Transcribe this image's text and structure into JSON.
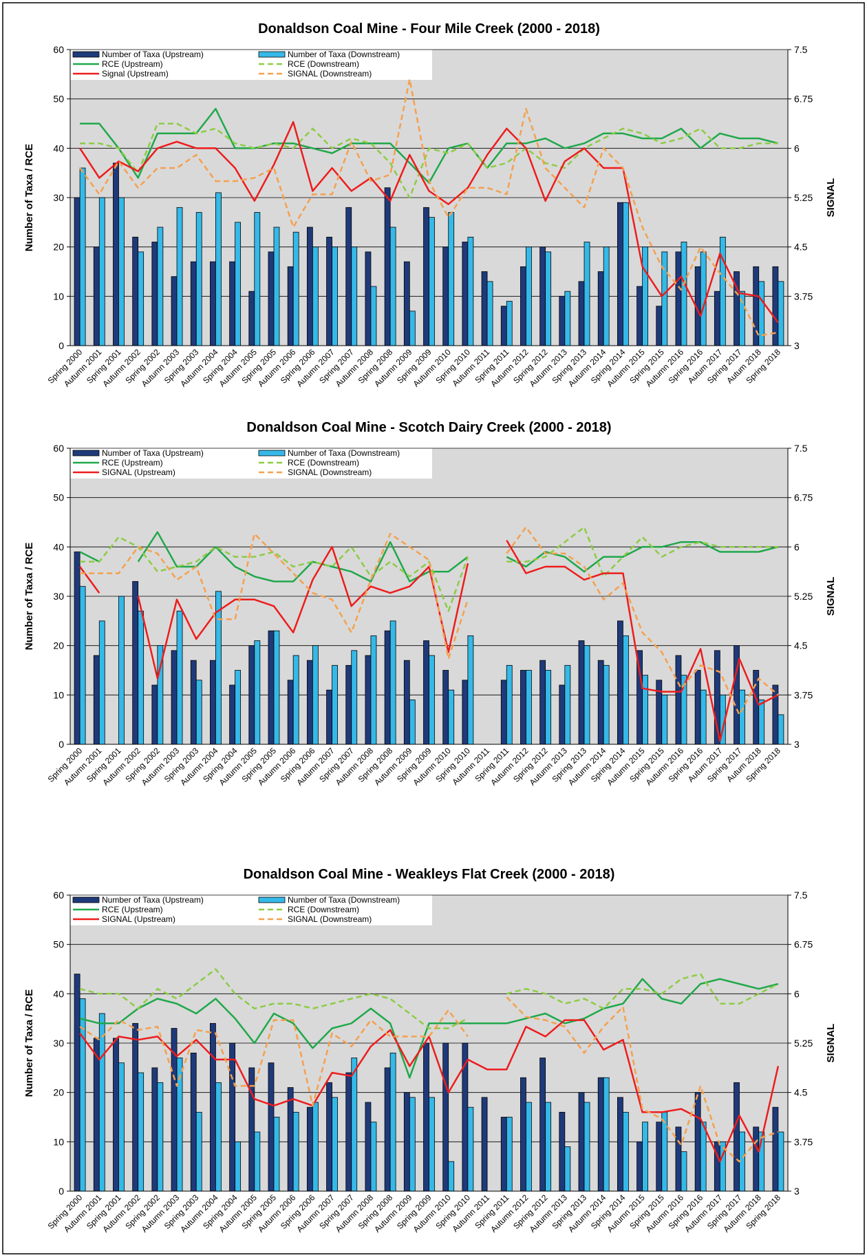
{
  "chart_data": [
    {
      "type": "combo",
      "title": "Donaldson Coal Mine - Four Mile Creek (2000 - 2018)",
      "ylabel": "Number of Taxa /  RCE",
      "y2label": "SIGNAL",
      "categories": [
        "Spring 2000",
        "Autumn 2001",
        "Spring 2001",
        "Autumn 2002",
        "Spring 2002",
        "Autumn 2003",
        "Spring 2003",
        "Autumn 2004",
        "Spring 2004",
        "Autumn 2005",
        "Spring 2005",
        "Autumn 2006",
        "Spring 2006",
        "Autumn 2007",
        "Spring 2007",
        "Autumn 2008",
        "Spring 2008",
        "Autumn 2009",
        "Spring 2009",
        "Autumn 2010",
        "Spring 2010",
        "Autumn 2011",
        "Spring 2011",
        "Autumn 2012",
        "Spring 2012",
        "Autumn 2013",
        "Spring 2013",
        "Autumn 2014",
        "Spring 2014",
        "Autumn 2015",
        "Spring 2015",
        "Autumn 2016",
        "Spring 2016",
        "Autum 2017",
        "Spring 2017",
        "Autum 2018",
        "Spring 2018"
      ],
      "ylim": [
        0,
        60
      ],
      "yticks": [
        0,
        10,
        20,
        30,
        40,
        50,
        60
      ],
      "y2lim": [
        3,
        7.5
      ],
      "y2ticks": [
        3,
        3.75,
        4.5,
        5.25,
        6,
        6.75,
        7.5
      ],
      "grid": true,
      "series": [
        {
          "name": "Number of Taxa (Upstream)",
          "type": "bar",
          "color": "#1f3a7a",
          "values": [
            30,
            20,
            37,
            22,
            21,
            14,
            17,
            17,
            17,
            11,
            19,
            16,
            24,
            22,
            28,
            19,
            32,
            17,
            28,
            20,
            21,
            15,
            8,
            16,
            20,
            10,
            13,
            15,
            29,
            12,
            8,
            19,
            16,
            11,
            15,
            16,
            16
          ]
        },
        {
          "name": "Number of Taxa (Downstream)",
          "type": "bar",
          "color": "#35b9e8",
          "values": [
            36,
            30,
            30,
            19,
            24,
            28,
            27,
            31,
            25,
            27,
            24,
            23,
            20,
            20,
            20,
            12,
            24,
            7,
            26,
            27,
            22,
            13,
            9,
            20,
            19,
            11,
            21,
            20,
            29,
            20,
            19,
            21,
            19,
            22,
            11,
            13,
            13
          ]
        },
        {
          "name": "RCE (Upstream)",
          "type": "line",
          "color": "#1fa84a",
          "values": [
            45,
            45,
            40,
            34,
            43,
            43,
            43,
            48,
            40,
            40,
            41,
            41,
            40,
            39,
            41,
            41,
            41,
            37,
            33,
            40,
            41,
            36,
            41,
            41,
            42,
            40,
            41,
            43,
            43,
            42,
            42,
            44,
            40,
            43,
            42,
            42,
            41
          ]
        },
        {
          "name": "RCE (Downstream)",
          "type": "line",
          "dashed": true,
          "color": "#8ccc44",
          "values": [
            41,
            41,
            40,
            35,
            45,
            45,
            43,
            44,
            41,
            40,
            41,
            40,
            44,
            40,
            42,
            41,
            37,
            30,
            40,
            39,
            41,
            36,
            37,
            40,
            37,
            36,
            40,
            42,
            44,
            43,
            41,
            42,
            44,
            40,
            40,
            41,
            41
          ]
        },
        {
          "name": "Signal (Upstream)",
          "type": "line",
          "axis": "y2",
          "color": "#ee1c1c",
          "values": [
            6,
            5.55,
            5.8,
            5.65,
            6,
            6.1,
            6,
            6,
            5.7,
            5.2,
            5.75,
            6.4,
            5.35,
            5.7,
            5.35,
            5.55,
            5.2,
            5.9,
            5.35,
            5.15,
            5.4,
            5.9,
            6.3,
            6,
            5.2,
            5.8,
            6,
            5.7,
            5.7,
            4.2,
            3.75,
            4.05,
            3.45,
            4.4,
            3.8,
            3.75,
            3.35
          ]
        },
        {
          "name": "SIGNAL (Downstream)",
          "type": "line",
          "axis": "y2",
          "dashed": true,
          "color": "#f5a04e",
          "values": [
            5.7,
            5.3,
            5.8,
            5.4,
            5.7,
            5.7,
            5.9,
            5.5,
            5.5,
            5.55,
            5.7,
            4.8,
            5.3,
            5.3,
            6.1,
            5.5,
            5.6,
            7.05,
            5.5,
            4.95,
            5.4,
            5.4,
            5.3,
            6.6,
            5.7,
            5.4,
            5.1,
            6,
            5.7,
            4.8,
            4.2,
            3.85,
            4.5,
            4.1,
            3.75,
            3.15,
            3.2
          ]
        }
      ]
    },
    {
      "type": "combo",
      "title": "Donaldson Coal Mine - Scotch Dairy Creek (2000 - 2018)",
      "ylabel": "Number of Taxa /  RCE",
      "y2label": "SIGNAL",
      "categories": [
        "Spring 2000",
        "Autumn 2001",
        "Spring 2001",
        "Autumn 2002",
        "Spring 2002",
        "Autumn 2003",
        "Spring 2003",
        "Autumn 2004",
        "Spring 2004",
        "Autumn 2005",
        "Spring 2005",
        "Autumn 2006",
        "Spring 2006",
        "Autumn 2007",
        "Spring 2007",
        "Autumn 2008",
        "Spring 2008",
        "Autumn 2009",
        "Spring 2009",
        "Autumn 2010",
        "Spring 2010",
        "Autumn 2011",
        "Spring 2011",
        "Autumn 2012",
        "Spring 2012",
        "Autumn 2013",
        "Spring 2013",
        "Autumn 2014",
        "Spring 2014",
        "Autumn 2015",
        "Spring 2015",
        "Autumn 2016",
        "Spring 2016",
        "Autum 2017",
        "Spring 2017",
        "Autum 2018",
        "Spring 2018"
      ],
      "ylim": [
        0,
        60
      ],
      "yticks": [
        0,
        10,
        20,
        30,
        40,
        50,
        60
      ],
      "y2lim": [
        3,
        7.5
      ],
      "y2ticks": [
        3,
        3.75,
        4.5,
        5.25,
        6,
        6.75,
        7.5
      ],
      "grid": true,
      "series": [
        {
          "name": "Number of Taxa (Upstream)",
          "type": "bar",
          "color": "#1f3a7a",
          "values": [
            39,
            18,
            null,
            33,
            12,
            19,
            17,
            17,
            12,
            20,
            23,
            13,
            17,
            11,
            16,
            18,
            23,
            17,
            21,
            15,
            13,
            null,
            13,
            15,
            17,
            12,
            21,
            17,
            25,
            19,
            13,
            18,
            15,
            19,
            20,
            15,
            12
          ]
        },
        {
          "name": "Number of Taxa (Downstream)",
          "type": "bar",
          "color": "#35b9e8",
          "values": [
            32,
            25,
            30,
            27,
            20,
            27,
            13,
            31,
            15,
            21,
            23,
            18,
            20,
            16,
            19,
            22,
            25,
            9,
            18,
            11,
            22,
            null,
            16,
            15,
            15,
            16,
            20,
            16,
            22,
            14,
            10,
            14,
            11,
            10,
            11,
            9,
            6
          ]
        },
        {
          "name": "RCE (Upstream)",
          "type": "line",
          "color": "#1fa84a",
          "values": [
            39,
            37,
            null,
            37,
            43,
            36,
            36,
            40,
            36,
            34,
            33,
            33,
            37,
            36,
            35,
            33,
            41,
            33,
            35,
            35,
            38,
            null,
            38,
            36,
            39,
            38,
            35,
            38,
            38,
            40,
            40,
            41,
            41,
            39,
            39,
            39,
            40
          ]
        },
        {
          "name": "RCE (Downstream)",
          "type": "line",
          "dashed": true,
          "color": "#8ccc44",
          "values": [
            37,
            37,
            42,
            40,
            35,
            36,
            37,
            40,
            38,
            38,
            39,
            36,
            37,
            36,
            40,
            34,
            37,
            34,
            37,
            27,
            38,
            null,
            37,
            37,
            38,
            41,
            44,
            34,
            38,
            42,
            38,
            40,
            41,
            40,
            40,
            40,
            40
          ]
        },
        {
          "name": "SIGNAL (Upstream)",
          "type": "line",
          "axis": "y2",
          "color": "#ee1c1c",
          "values": [
            5.7,
            5.3,
            null,
            5.25,
            4,
            5.2,
            4.6,
            5,
            5.2,
            5.2,
            5.1,
            4.7,
            5.5,
            6,
            5.1,
            5.4,
            5.3,
            5.4,
            5.7,
            4.4,
            5.75,
            null,
            6.1,
            5.6,
            5.7,
            5.7,
            5.5,
            5.6,
            5.6,
            3.85,
            3.8,
            3.8,
            4.45,
            3.05,
            4.3,
            3.6,
            3.75
          ]
        },
        {
          "name": "SIGNAL (Downstream)",
          "type": "line",
          "axis": "y2",
          "dashed": true,
          "color": "#f5a04e",
          "values": [
            5.6,
            5.6,
            5.6,
            6,
            5.9,
            5.5,
            5.7,
            4.9,
            4.9,
            6.2,
            5.9,
            5.6,
            5.3,
            5.2,
            4.7,
            5.5,
            6.2,
            6,
            5.8,
            4.3,
            5.2,
            null,
            5.9,
            6.3,
            5.9,
            5.9,
            5.7,
            5.2,
            5.45,
            4.7,
            4.4,
            3.85,
            4.2,
            4.1,
            3.45,
            4,
            3.75
          ]
        }
      ]
    },
    {
      "type": "combo",
      "title": "Donaldson Coal Mine - Weakleys Flat Creek (2000 - 2018)",
      "ylabel": "Number of Taxa /  RCE",
      "y2label": "SIGNAL",
      "categories": [
        "Spring 2000",
        "Autumn 2001",
        "Spring 2001",
        "Autumn 2002",
        "Spring 2002",
        "Autumn 2003",
        "Spring 2003",
        "Autumn 2004",
        "Spring 2004",
        "Autumn 2005",
        "Spring 2005",
        "Autumn 2006",
        "Spring 2006",
        "Autumn 2007",
        "Spring 2007",
        "Autumn 2008",
        "Spring 2008",
        "Autumn 2009",
        "Spring 2009",
        "Autumn 2010",
        "Spring 2010",
        "Autumn 2011",
        "Spring 2011",
        "Autumn 2012",
        "Spring 2012",
        "Autumn 2013",
        "Spring 2013",
        "Autumn 2014",
        "Spring 2014",
        "Autumn 2015",
        "Spring 2015",
        "Autumn 2016",
        "Spring 2016",
        "Autumn 2017",
        "Spring 2017",
        "Autumn 2018",
        "Spring 2018"
      ],
      "ylim": [
        0,
        60
      ],
      "yticks": [
        0,
        10,
        20,
        30,
        40,
        50,
        60
      ],
      "y2lim": [
        3,
        7.5
      ],
      "y2ticks": [
        3,
        3.75,
        4.5,
        5.25,
        6,
        6.75,
        7.5
      ],
      "grid": true,
      "series": [
        {
          "name": "Number of Taxa (Upstream)",
          "type": "bar",
          "color": "#1f3a7a",
          "values": [
            44,
            31,
            31,
            34,
            25,
            33,
            28,
            34,
            30,
            25,
            26,
            21,
            17,
            22,
            24,
            18,
            25,
            20,
            30,
            30,
            30,
            19,
            15,
            23,
            27,
            16,
            20,
            23,
            19,
            10,
            14,
            13,
            20,
            10,
            22,
            13,
            17
          ]
        },
        {
          "name": "Number of Taxa (Downstream)",
          "type": "bar",
          "color": "#35b9e8",
          "values": [
            39,
            36,
            26,
            24,
            22,
            27,
            16,
            22,
            10,
            12,
            15,
            16,
            18,
            19,
            27,
            14,
            28,
            19,
            19,
            6,
            17,
            null,
            15,
            18,
            18,
            9,
            18,
            23,
            16,
            14,
            16,
            8,
            14,
            10,
            12,
            12,
            12
          ]
        },
        {
          "name": "RCE (Upstream)",
          "type": "line",
          "color": "#1fa84a",
          "values": [
            35,
            34,
            34,
            37,
            39,
            38,
            36,
            39,
            35,
            30,
            36,
            34,
            29,
            33,
            34,
            37,
            34,
            23,
            34,
            34,
            34,
            34,
            34,
            35,
            36,
            34,
            35,
            37,
            38,
            43,
            39,
            38,
            42,
            43,
            42,
            41,
            42
          ]
        },
        {
          "name": "RCE (Downstream)",
          "type": "line",
          "dashed": true,
          "color": "#8ccc44",
          "values": [
            41,
            40,
            40,
            37,
            41,
            39,
            42,
            45,
            40,
            37,
            38,
            38,
            37,
            38,
            39,
            40,
            39,
            36,
            33,
            33,
            35,
            null,
            40,
            41,
            40,
            38,
            39,
            37,
            41,
            41,
            40,
            43,
            44,
            38,
            38,
            40,
            42
          ]
        },
        {
          "name": "SIGNAL (Upstream)",
          "type": "line",
          "axis": "y2",
          "color": "#ee1c1c",
          "values": [
            5.4,
            5,
            5.35,
            5.3,
            5.35,
            5.05,
            5.3,
            5,
            5,
            4.4,
            4.3,
            4.4,
            4.3,
            4.8,
            4.75,
            5.2,
            5.45,
            4.9,
            5.35,
            4.5,
            5,
            4.85,
            4.85,
            5.5,
            5.35,
            5.6,
            5.6,
            5.15,
            5.3,
            4.2,
            4.2,
            4.25,
            4.1,
            3.45,
            4.15,
            3.6,
            4.9
          ]
        },
        {
          "name": "SIGNAL (Downstream)",
          "type": "line",
          "axis": "y2",
          "dashed": true,
          "color": "#f5a04e",
          "values": [
            5.5,
            5.3,
            5.6,
            5.45,
            5.5,
            4.6,
            5.45,
            5.4,
            4.6,
            4.6,
            5.6,
            5.6,
            4.3,
            5.4,
            5.2,
            5.6,
            5.35,
            5.35,
            5.35,
            5.75,
            5.35,
            null,
            5.95,
            5.65,
            5.6,
            5.5,
            5.1,
            5.5,
            5.8,
            4.25,
            4.1,
            3.7,
            4.6,
            3.7,
            3.45,
            3.8,
            3.9
          ]
        }
      ]
    }
  ]
}
